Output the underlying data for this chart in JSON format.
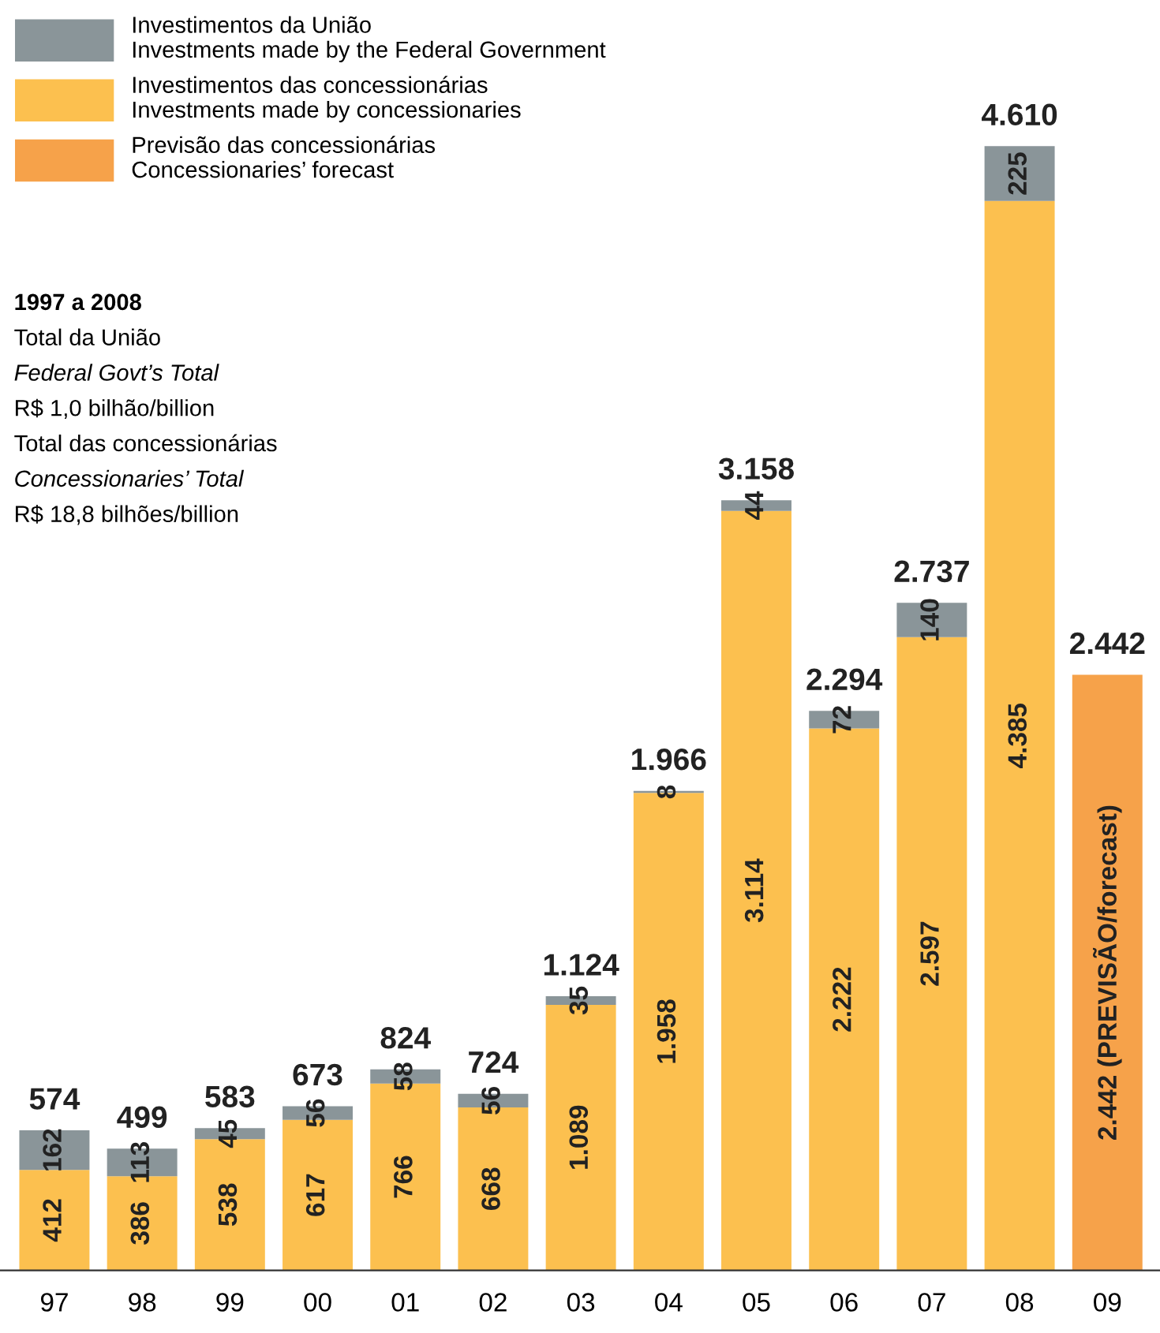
{
  "chart_data": {
    "type": "bar",
    "stacked": true,
    "categories": [
      "97",
      "98",
      "99",
      "00",
      "01",
      "02",
      "03",
      "04",
      "05",
      "06",
      "07",
      "08",
      "09"
    ],
    "series": [
      {
        "name": "Investimentos das concessionárias\nInvestments made by concessionaries",
        "color": "#fcc04f",
        "values": [
          412,
          386,
          538,
          617,
          766,
          668,
          1089,
          1958,
          3114,
          2222,
          2597,
          4385,
          null
        ],
        "value_labels": [
          "412",
          "386",
          "538",
          "617",
          "766",
          "668",
          "1.089",
          "1.958",
          "3.114",
          "2.222",
          "2.597",
          "4.385",
          null
        ]
      },
      {
        "name": "Investimentos da União\nInvestments made by the Federal Government",
        "color": "#8a9599",
        "values": [
          162,
          113,
          45,
          56,
          58,
          56,
          35,
          8,
          44,
          72,
          140,
          225,
          null
        ],
        "value_labels": [
          "162",
          "113",
          "45",
          "56",
          "58",
          "56",
          "35",
          "8",
          "44",
          "72",
          "140",
          "225",
          null
        ]
      },
      {
        "name": "Previsão das concessionárias\nConcessionaries’ forecast",
        "color": "#f6a24a",
        "values": [
          null,
          null,
          null,
          null,
          null,
          null,
          null,
          null,
          null,
          null,
          null,
          null,
          2442
        ],
        "value_labels": [
          null,
          null,
          null,
          null,
          null,
          null,
          null,
          null,
          null,
          null,
          null,
          null,
          "2.442 (PREVISÃO/forecast)"
        ]
      }
    ],
    "totals": [
      "574",
      "499",
      "583",
      "673",
      "824",
      "724",
      "1.124",
      "1.966",
      "3.158",
      "2.294",
      "2.737",
      "4.610",
      "2.442"
    ],
    "annotations": [
      "1997 a 2008",
      "Total da União",
      "Federal Govt’s Total",
      "R$ 1,0 bilhão/billion",
      "Total das concessionárias",
      "Concessionaries’ Total",
      "R$ 18,8 bilhões/billion"
    ],
    "tick_labels": "x",
    "legend": "top left",
    "grid": false
  }
}
